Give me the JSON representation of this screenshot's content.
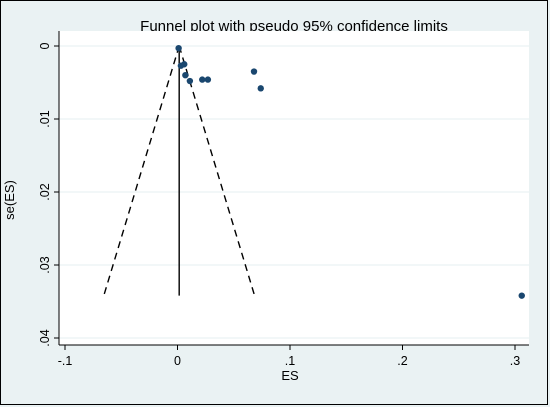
{
  "chart_data": {
    "type": "scatter",
    "title": "Funnel plot with pseudo 95% confidence limits",
    "xlabel": "ES",
    "ylabel": "se(ES)",
    "xlim": [
      -0.1,
      0.3
    ],
    "ylim": [
      0,
      0.04
    ],
    "y_reversed": true,
    "grid": true,
    "x_ticks": [
      -0.1,
      0,
      0.1,
      0.2,
      0.3
    ],
    "x_tick_labels": [
      "-.1",
      "0",
      ".1",
      ".2",
      ".3"
    ],
    "y_ticks": [
      0,
      0.01,
      0.02,
      0.03,
      0.04
    ],
    "y_tick_labels": [
      "0",
      ".01",
      ".02",
      ".03",
      ".04"
    ],
    "points": [
      {
        "x": 0.001,
        "y": 0.0003
      },
      {
        "x": 0.003,
        "y": 0.0027
      },
      {
        "x": 0.006,
        "y": 0.0025
      },
      {
        "x": 0.007,
        "y": 0.004
      },
      {
        "x": 0.011,
        "y": 0.0048
      },
      {
        "x": 0.022,
        "y": 0.0046
      },
      {
        "x": 0.027,
        "y": 0.0046
      },
      {
        "x": 0.068,
        "y": 0.0035
      },
      {
        "x": 0.074,
        "y": 0.0058
      },
      {
        "x": 0.306,
        "y": 0.0342
      }
    ],
    "pooled_estimate": 0.0015,
    "se_max": 0.0342,
    "funnel_lines": {
      "style": "dashed",
      "z": 1.96
    },
    "colors": {
      "points": "#1a476f",
      "background": "#eaf2f3",
      "plot_background": "#ffffff",
      "grid": "#eaf2f3"
    }
  }
}
